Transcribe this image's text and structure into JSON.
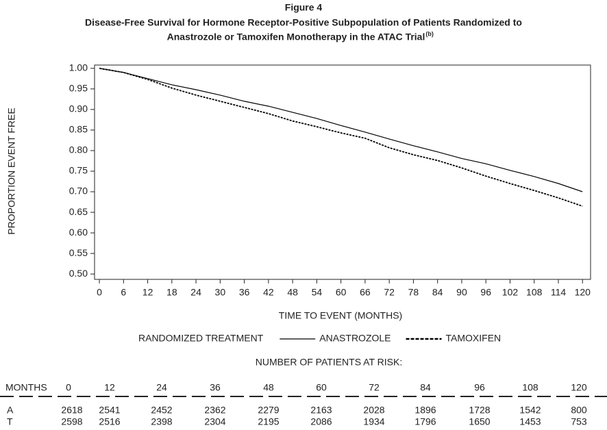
{
  "chart_data": {
    "type": "line",
    "title": "Figure 4",
    "subtitle": [
      "Disease-Free Survival for Hormone Receptor-Positive Subpopulation of Patients Randomized to",
      "Anastrozole or Tamoxifen Monotherapy in the ATAC Trial"
    ],
    "subtitle_superscript": "(b)",
    "x_label": "TIME TO EVENT (MONTHS)",
    "y_label": "PROPORTION EVENT FREE",
    "x": [
      0,
      6,
      12,
      18,
      24,
      30,
      36,
      42,
      48,
      54,
      60,
      66,
      72,
      78,
      84,
      90,
      96,
      102,
      108,
      114,
      120
    ],
    "series": [
      {
        "name": "ANASTROZOLE",
        "color": "#000000",
        "style": "solid",
        "values": [
          1.0,
          0.99,
          0.975,
          0.96,
          0.948,
          0.935,
          0.92,
          0.908,
          0.893,
          0.878,
          0.861,
          0.845,
          0.828,
          0.812,
          0.797,
          0.781,
          0.768,
          0.752,
          0.737,
          0.72,
          0.7
        ]
      },
      {
        "name": "TAMOXIFEN",
        "color": "#000000",
        "style": "dashed",
        "values": [
          1.0,
          0.99,
          0.973,
          0.952,
          0.935,
          0.92,
          0.905,
          0.89,
          0.872,
          0.858,
          0.843,
          0.83,
          0.807,
          0.79,
          0.776,
          0.758,
          0.738,
          0.72,
          0.703,
          0.685,
          0.665
        ]
      }
    ],
    "legend_title": "RANDOMIZED TREATMENT",
    "xlim": [
      -1.2,
      122
    ],
    "ylim": [
      0.487,
      1.008
    ],
    "xticks": [
      0,
      6,
      12,
      18,
      24,
      30,
      36,
      42,
      48,
      54,
      60,
      66,
      72,
      78,
      84,
      90,
      96,
      102,
      108,
      114,
      120
    ],
    "yticks": [
      {
        "value": 0.5,
        "label": "0.50"
      },
      {
        "value": 0.55,
        "label": "0.55"
      },
      {
        "value": 0.6,
        "label": "0.60"
      },
      {
        "value": 0.65,
        "label": "0.65"
      },
      {
        "value": 0.7,
        "label": "0.70"
      },
      {
        "value": 0.75,
        "label": "0.75"
      },
      {
        "value": 0.8,
        "label": "0.80"
      },
      {
        "value": 0.85,
        "label": "0.85"
      },
      {
        "value": 0.9,
        "label": "0.90"
      },
      {
        "value": 0.95,
        "label": "0.95"
      },
      {
        "value": 1.0,
        "label": "1.00"
      }
    ],
    "grid": false,
    "risk_table": {
      "title": "NUMBER OF PATIENTS AT RISK:",
      "header_label": "MONTHS",
      "months": [
        0,
        12,
        24,
        36,
        48,
        60,
        72,
        84,
        96,
        108,
        120
      ],
      "rows": [
        {
          "label": "A",
          "values": [
            2618,
            2541,
            2452,
            2362,
            2279,
            2163,
            2028,
            1896,
            1728,
            1542,
            800
          ]
        },
        {
          "label": "T",
          "values": [
            2598,
            2516,
            2398,
            2304,
            2195,
            2086,
            1934,
            1796,
            1650,
            1453,
            753
          ]
        }
      ]
    }
  }
}
